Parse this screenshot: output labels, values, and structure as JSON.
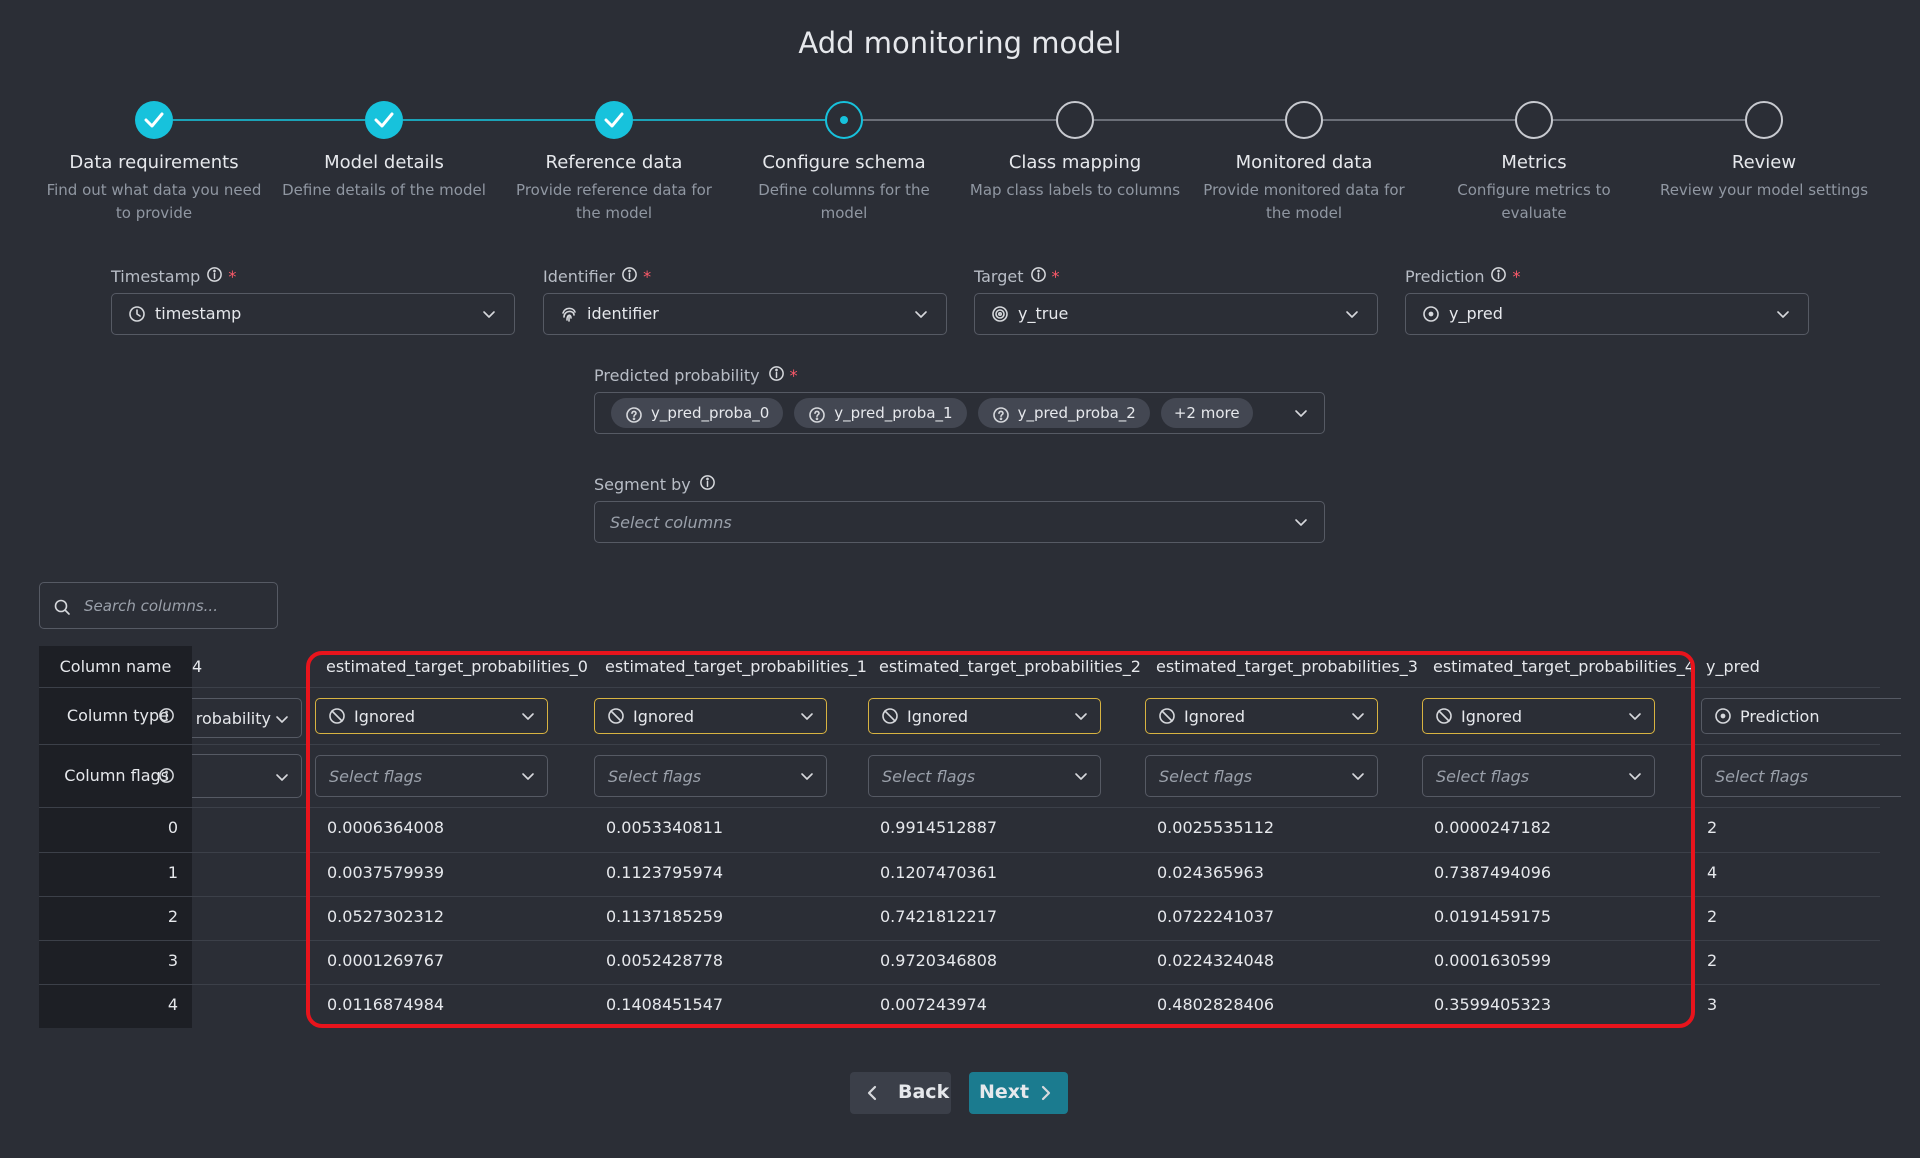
{
  "title": "Add monitoring model",
  "steps": [
    {
      "label": "Data requirements",
      "description": [
        "Find out what data you need",
        "to provide"
      ]
    },
    {
      "label": "Model details",
      "description": [
        "Define details of the model"
      ]
    },
    {
      "label": "Reference data",
      "description": [
        "Provide reference data for",
        "the model"
      ]
    },
    {
      "label": "Configure schema",
      "description": [
        "Define columns for the",
        "model"
      ]
    },
    {
      "label": "Class mapping",
      "description": [
        "Map class labels to columns"
      ]
    },
    {
      "label": "Monitored data",
      "description": [
        "Provide monitored data for",
        "the model"
      ]
    },
    {
      "label": "Metrics",
      "description": [
        "Configure metrics to",
        "evaluate"
      ]
    },
    {
      "label": "Review",
      "description": [
        "Review your model settings"
      ]
    }
  ],
  "required_mark": "*",
  "fields": [
    {
      "label": "Timestamp",
      "value": "timestamp"
    },
    {
      "label": "Identifier",
      "value": "identifier"
    },
    {
      "label": "Target",
      "value": "y_true"
    },
    {
      "label": "Prediction",
      "value": "y_pred"
    }
  ],
  "predicted_probability": {
    "label": "Predicted probability",
    "chips": [
      "y_pred_proba_0",
      "y_pred_proba_1",
      "y_pred_proba_2"
    ],
    "more": "+2 more"
  },
  "segment_by": {
    "label": "Segment by",
    "placeholder": "Select columns"
  },
  "search": {
    "placeholder": "Search columns..."
  },
  "table": {
    "row_headers": [
      "Column name",
      "Column type",
      "Column flags"
    ],
    "row_index": [
      0,
      1,
      2,
      3,
      4
    ],
    "partial_column": {
      "name": "4",
      "type": "robability"
    },
    "columns": [
      {
        "name": "estimated_target_probabilities_0",
        "type": "Ignored",
        "flags": "Select flags",
        "values": [
          0.0006364008,
          0.0037579939,
          0.0527302312,
          0.0001269767,
          0.0116874984
        ]
      },
      {
        "name": "estimated_target_probabilities_1",
        "type": "Ignored",
        "flags": "Select flags",
        "values": [
          0.0053340811,
          0.1123795974,
          0.1137185259,
          0.0052428778,
          0.1408451547
        ]
      },
      {
        "name": "estimated_target_probabilities_2",
        "type": "Ignored",
        "flags": "Select flags",
        "values": [
          0.9914512887,
          0.1207470361,
          0.7421812217,
          0.9720346808,
          0.007243974
        ]
      },
      {
        "name": "estimated_target_probabilities_3",
        "type": "Ignored",
        "flags": "Select flags",
        "values": [
          0.0025535112,
          0.024365963,
          0.0722241037,
          0.0224324048,
          0.4802828406
        ]
      },
      {
        "name": "estimated_target_probabilities_4",
        "type": "Ignored",
        "flags": "Select flags",
        "values": [
          2.47182e-05,
          0.7387494096,
          0.0191459175,
          0.0001630599,
          0.3599405323
        ]
      },
      {
        "name": "y_pred",
        "type": "Prediction",
        "flags": "Select flags",
        "values": [
          2,
          4,
          2,
          2,
          3
        ]
      }
    ]
  },
  "buttons": {
    "back": "Back",
    "next": "Next"
  }
}
